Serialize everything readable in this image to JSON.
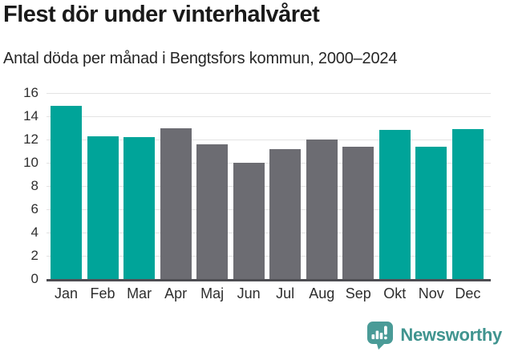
{
  "header": {
    "title": "Flest dör under vinterhalvåret",
    "subtitle": "Antal döda per månad i Bengtsfors kommun, 2000–2024"
  },
  "chart_data": {
    "type": "bar",
    "title": "Flest dör under vinterhalvåret",
    "subtitle": "Antal döda per månad i Bengtsfors kommun, 2000–2024",
    "categories": [
      "Jan",
      "Feb",
      "Mar",
      "Apr",
      "Maj",
      "Jun",
      "Jul",
      "Aug",
      "Sep",
      "Okt",
      "Nov",
      "Dec"
    ],
    "values": [
      14.9,
      12.3,
      12.2,
      13.0,
      11.6,
      10.0,
      11.2,
      12.0,
      11.4,
      12.8,
      11.4,
      12.9
    ],
    "bar_colors": [
      "#00A499",
      "#00A499",
      "#00A499",
      "#6C6C72",
      "#6C6C72",
      "#6C6C72",
      "#6C6C72",
      "#6C6C72",
      "#6C6C72",
      "#00A499",
      "#00A499",
      "#00A499"
    ],
    "highlight_color": "#00A499",
    "base_color": "#6C6C72",
    "xlabel": "",
    "ylabel": "",
    "ylim": [
      0,
      16
    ],
    "yticks": [
      0,
      2,
      4,
      6,
      8,
      10,
      12,
      14,
      16
    ],
    "grid": true,
    "gridline_color": "#E3E3E3",
    "axis_line_color": "#4D4D52",
    "legend": "none"
  },
  "footer": {
    "brand": "Newsworthy",
    "brand_color": "#40948F",
    "icon": "newsworthy-speech-bubble-bar-chart-icon",
    "icon_color": "#4A9B97"
  }
}
